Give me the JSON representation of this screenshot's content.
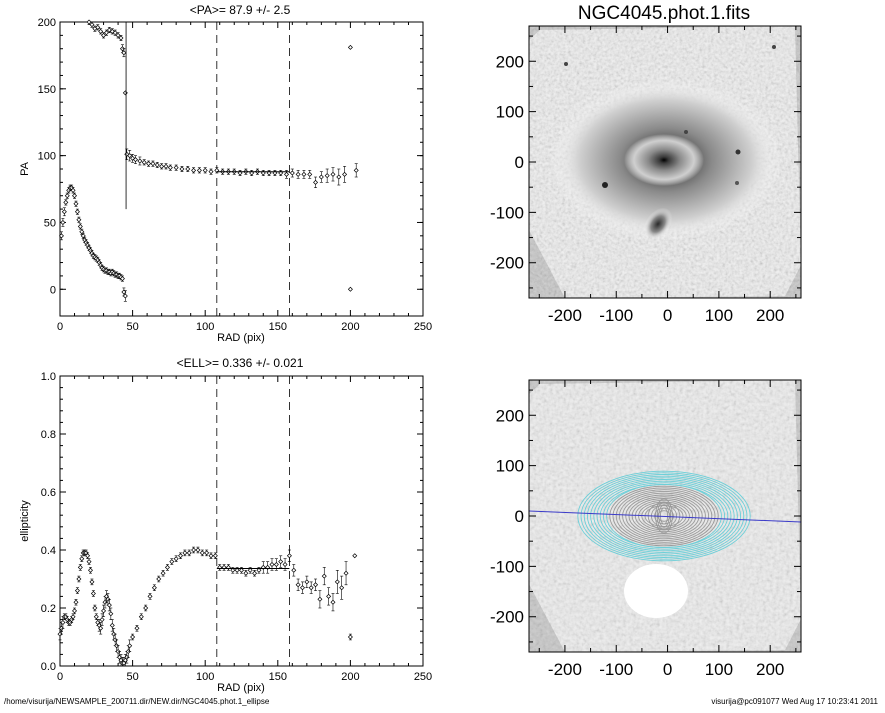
{
  "footer": {
    "path": "/home/visurija/NEWSAMPLE_200711.dir/NEW.dir/NGC4045.phot.1_ellipse",
    "user_stamp": "visurija@pc091077  Wed Aug 17 10:23:41 2011"
  },
  "chart_data": [
    {
      "type": "scatter",
      "title": "<PA>=  87.9 +/-   2.5",
      "xlabel": "RAD (pix)",
      "ylabel": "PA",
      "xlim": [
        0,
        250
      ],
      "ylim": [
        -20,
        200
      ],
      "xticks": [
        0,
        50,
        100,
        150,
        200,
        250
      ],
      "yticks": [
        0,
        50,
        100,
        150,
        200
      ],
      "xtick_labels": [
        "0",
        "50",
        "100",
        "150",
        "200",
        "250"
      ],
      "ytick_labels": [
        "0",
        "50",
        "100",
        "150",
        "200"
      ],
      "vlines_dashed": [
        108,
        158
      ],
      "fit_line": {
        "x": [
          108,
          158
        ],
        "y": [
          87.9,
          87.9
        ]
      },
      "series": [
        {
          "x": [
            1,
            2,
            3,
            4,
            5,
            6,
            7,
            8,
            9,
            10,
            11,
            12,
            13,
            14,
            15,
            16,
            17,
            18,
            19,
            20,
            21,
            22,
            23,
            24,
            25,
            26,
            27,
            28,
            29,
            30,
            31,
            32,
            33,
            34,
            35,
            36,
            37,
            38,
            39,
            40,
            41,
            42,
            43,
            44,
            45
          ],
          "y": [
            40,
            50,
            58,
            65,
            70,
            74,
            76,
            76,
            74,
            70,
            64,
            58,
            52,
            47,
            43,
            40,
            37,
            35,
            33,
            31,
            29,
            27,
            25,
            24,
            23,
            22,
            20,
            18,
            16,
            15,
            14,
            14,
            13,
            13,
            12,
            13,
            12,
            11,
            11,
            10,
            10,
            9,
            8,
            -2,
            -5
          ],
          "err": [
            3,
            3,
            3,
            2,
            2,
            2,
            2,
            2,
            2,
            2,
            2,
            2,
            2,
            2,
            2,
            2,
            2,
            2,
            2,
            2,
            2,
            2,
            2,
            2,
            2,
            2,
            2,
            2,
            2,
            2,
            2,
            2,
            2,
            2,
            2,
            2,
            2,
            2,
            2,
            2,
            2,
            2,
            2,
            3,
            4
          ]
        },
        {
          "x": [
            20,
            22,
            24,
            26,
            28,
            30,
            32,
            34,
            36,
            38,
            40,
            42,
            43,
            44
          ],
          "y": [
            200,
            198,
            195,
            196,
            193,
            190,
            192,
            194,
            193,
            192,
            190,
            188,
            180,
            177
          ],
          "err": [
            2,
            2,
            2,
            2,
            2,
            2,
            2,
            2,
            2,
            2,
            2,
            2,
            3,
            3
          ]
        },
        {
          "x": [
            46,
            48,
            50,
            52,
            55,
            58,
            61,
            64,
            67,
            70,
            73,
            76,
            80,
            84,
            88,
            92,
            96,
            100,
            104,
            108,
            112,
            116,
            120,
            124,
            128,
            132,
            136,
            140,
            144,
            148,
            152,
            156,
            160,
            164,
            168,
            172,
            176,
            180,
            184,
            188,
            192,
            196,
            200,
            204
          ],
          "y": [
            101,
            100,
            98,
            97,
            96,
            95,
            94,
            94,
            93,
            92,
            92,
            91,
            91,
            90,
            90,
            89,
            89,
            89,
            88,
            89,
            88,
            88,
            88,
            87,
            88,
            87,
            88,
            87,
            87,
            87,
            87,
            86,
            87,
            86,
            86,
            86,
            80,
            84,
            85,
            86,
            84,
            86,
            0,
            89
          ],
          "err": [
            4,
            4,
            3,
            3,
            3,
            2,
            2,
            2,
            2,
            2,
            2,
            2,
            2,
            2,
            2,
            2,
            2,
            2,
            2,
            2,
            2,
            2,
            2,
            2,
            2,
            2,
            2,
            2,
            2,
            2,
            2,
            3,
            3,
            3,
            3,
            3,
            4,
            4,
            5,
            5,
            6,
            6,
            0,
            5
          ]
        },
        {
          "x": [
            45,
            200
          ],
          "y": [
            147,
            181
          ],
          "err": [
            0,
            0
          ]
        }
      ]
    },
    {
      "type": "scatter",
      "title": "<ELL>= 0.336 +/-  0.021",
      "xlabel": "RAD (pix)",
      "ylabel": "ellipticity",
      "xlim": [
        0,
        250
      ],
      "ylim": [
        0.0,
        1.0
      ],
      "xticks": [
        0,
        50,
        100,
        150,
        200,
        250
      ],
      "yticks": [
        0.0,
        0.2,
        0.4,
        0.6,
        0.8,
        1.0
      ],
      "xtick_labels": [
        "0",
        "50",
        "100",
        "150",
        "200",
        "250"
      ],
      "ytick_labels": [
        "0.0",
        "0.2",
        "0.4",
        "0.6",
        "0.8",
        "1.0"
      ],
      "vlines_dashed": [
        108,
        158
      ],
      "fit_line": {
        "x": [
          108,
          158
        ],
        "y": [
          0.336,
          0.336
        ]
      },
      "series": [
        {
          "x": [
            0,
            1,
            2,
            3,
            4,
            5,
            6,
            7,
            8,
            9,
            10,
            11,
            12,
            13,
            14,
            15,
            16,
            17,
            18,
            19,
            20,
            21,
            22,
            23,
            24,
            25,
            26,
            27,
            28,
            29,
            30,
            31,
            32,
            33,
            34,
            35,
            36,
            37,
            38,
            39,
            40,
            41,
            42,
            43,
            44,
            45,
            46,
            47,
            48
          ],
          "y": [
            0.11,
            0.13,
            0.15,
            0.17,
            0.17,
            0.16,
            0.15,
            0.15,
            0.16,
            0.17,
            0.19,
            0.22,
            0.26,
            0.3,
            0.34,
            0.37,
            0.39,
            0.39,
            0.39,
            0.38,
            0.36,
            0.33,
            0.29,
            0.25,
            0.2,
            0.17,
            0.15,
            0.14,
            0.13,
            0.16,
            0.19,
            0.22,
            0.24,
            0.23,
            0.21,
            0.18,
            0.14,
            0.11,
            0.09,
            0.07,
            0.05,
            0.03,
            0.02,
            0.01,
            0.01,
            0.02,
            0.03,
            0.05,
            0.07
          ],
          "err": [
            0.02,
            0.02,
            0.02,
            0.01,
            0.01,
            0.01,
            0.01,
            0.01,
            0.01,
            0.01,
            0.01,
            0.01,
            0.01,
            0.01,
            0.01,
            0.01,
            0.01,
            0.01,
            0.01,
            0.01,
            0.01,
            0.01,
            0.01,
            0.01,
            0.01,
            0.01,
            0.01,
            0.02,
            0.02,
            0.02,
            0.02,
            0.02,
            0.02,
            0.02,
            0.02,
            0.02,
            0.02,
            0.02,
            0.02,
            0.02,
            0.02,
            0.02,
            0.02,
            0.02,
            0.02,
            0.02,
            0.02,
            0.02,
            0.02
          ]
        },
        {
          "x": [
            50,
            53,
            56,
            59,
            62,
            65,
            68,
            71,
            74,
            77,
            80,
            83,
            86,
            89,
            92,
            95,
            98,
            101,
            104,
            107
          ],
          "y": [
            0.1,
            0.13,
            0.17,
            0.2,
            0.24,
            0.27,
            0.3,
            0.32,
            0.34,
            0.36,
            0.37,
            0.38,
            0.39,
            0.39,
            0.4,
            0.4,
            0.39,
            0.39,
            0.38,
            0.38
          ],
          "err": [
            0.01,
            0.01,
            0.01,
            0.01,
            0.01,
            0.01,
            0.01,
            0.01,
            0.01,
            0.01,
            0.01,
            0.01,
            0.01,
            0.01,
            0.01,
            0.01,
            0.01,
            0.01,
            0.01,
            0.01
          ]
        },
        {
          "x": [
            110,
            113,
            116,
            119,
            122,
            125,
            128,
            131,
            134,
            137,
            140,
            143,
            146,
            149,
            152,
            155,
            158,
            161,
            164,
            167,
            170,
            173,
            176,
            179,
            182,
            185,
            188,
            191,
            194,
            197,
            200,
            203
          ],
          "y": [
            0.34,
            0.34,
            0.34,
            0.33,
            0.33,
            0.33,
            0.32,
            0.33,
            0.32,
            0.33,
            0.34,
            0.34,
            0.35,
            0.35,
            0.36,
            0.35,
            0.38,
            0.33,
            0.28,
            0.27,
            0.29,
            0.27,
            0.28,
            0.23,
            0.31,
            0.24,
            0.22,
            0.29,
            0.27,
            0.32,
            0.1,
            0.38
          ],
          "err": [
            0.01,
            0.01,
            0.01,
            0.01,
            0.01,
            0.01,
            0.01,
            0.01,
            0.01,
            0.01,
            0.02,
            0.02,
            0.02,
            0.02,
            0.02,
            0.02,
            0.02,
            0.02,
            0.02,
            0.02,
            0.02,
            0.02,
            0.02,
            0.03,
            0.03,
            0.03,
            0.03,
            0.04,
            0.04,
            0.04,
            0.01,
            0.0
          ]
        }
      ]
    },
    {
      "type": "heatmap",
      "title": "NGC4045.phot.1.fits",
      "xlim": [
        -270,
        260
      ],
      "ylim": [
        -270,
        270
      ],
      "xticks": [
        -200,
        -100,
        0,
        100,
        200
      ],
      "yticks": [
        -200,
        -100,
        0,
        100,
        200
      ],
      "xtick_labels": [
        "-200",
        "-100",
        "0",
        "100",
        "200"
      ],
      "ytick_labels": [
        "-200",
        "-100",
        "0",
        "100",
        "200"
      ]
    },
    {
      "type": "heatmap",
      "title": "",
      "xlim": [
        -270,
        260
      ],
      "ylim": [
        -270,
        270
      ],
      "xticks": [
        -200,
        -100,
        0,
        100,
        200
      ],
      "yticks": [
        -200,
        -100,
        0,
        100,
        200
      ],
      "xtick_labels": [
        "-200",
        "-100",
        "0",
        "100",
        "200"
      ],
      "ytick_labels": [
        "-200",
        "-100",
        "0",
        "100",
        "200"
      ],
      "pa_line_color": "#3a3ac8",
      "contour_colors": [
        "#9a9a9a",
        "#6ccfd8"
      ],
      "mask_color": "#ffffff"
    }
  ]
}
